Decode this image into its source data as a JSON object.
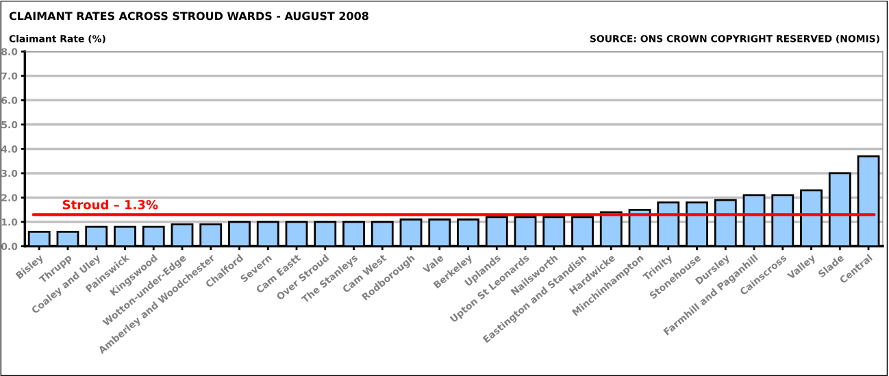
{
  "chart_data": {
    "type": "bar",
    "title": "CLAIMANT RATES ACROSS STROUD WARDS - AUGUST 2008",
    "ylabel": "Claimant Rate (%)",
    "annotations": [
      "SOURCE: ONS CROWN COPYRIGHT RESERVED (NOMIS)"
    ],
    "categories": [
      "Bisley",
      "Thrupp",
      "Coaley and Uley",
      "Painswick",
      "Kingswood",
      "Wotton-under-Edge",
      "Amberley and Woodchester",
      "Chalford",
      "Severn",
      "Cam Eastt",
      "Over Stroud",
      "The Stanleys",
      "Cam West",
      "Rodborough",
      "Vale",
      "Berkeley",
      "Uplands",
      "Upton St Leonards",
      "Nailsworth",
      "Eastington and Standish",
      "Hardwicke",
      "Minchinhampton",
      "Trinity",
      "Stonehouse",
      "Dursley",
      "Farmhill and Paganhill",
      "Cainscross",
      "Valley",
      "Slade",
      "Central"
    ],
    "values": [
      0.6,
      0.6,
      0.8,
      0.8,
      0.8,
      0.9,
      0.9,
      1.0,
      1.0,
      1.0,
      1.0,
      1.0,
      1.0,
      1.1,
      1.1,
      1.1,
      1.2,
      1.2,
      1.2,
      1.2,
      1.4,
      1.5,
      1.8,
      1.8,
      1.9,
      2.1,
      2.1,
      2.3,
      3.0,
      3.7
    ],
    "color": "#99ccff",
    "ylim": [
      0,
      8
    ],
    "yticks": [
      {
        "value": 0,
        "label": "0.0"
      },
      {
        "value": 1,
        "label": "1.0"
      },
      {
        "value": 2,
        "label": "2.0"
      },
      {
        "value": 3,
        "label": "3.0"
      },
      {
        "value": 4,
        "label": "4.0"
      },
      {
        "value": 5,
        "label": "5.0"
      },
      {
        "value": 6,
        "label": "6.0"
      },
      {
        "value": 7,
        "label": "7.0"
      },
      {
        "value": 8,
        "label": "8.0"
      }
    ],
    "grid": "y",
    "ref_lines": [
      {
        "axis": "y",
        "value": 1.3,
        "label": "Stroud – 1.3%",
        "color": "#ff0000"
      }
    ]
  }
}
